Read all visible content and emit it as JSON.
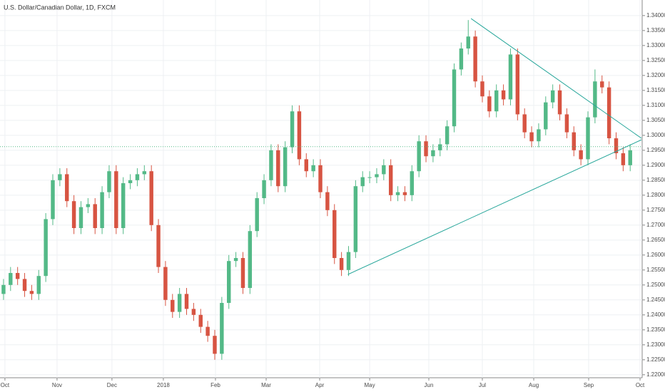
{
  "chart_data": {
    "type": "candlestick",
    "title": "U.S. Dollar/Canadian Dollar, 1D, FXCM",
    "up_color": "#53b987",
    "down_color": "#d75442",
    "grid": true,
    "categories": [
      null,
      null,
      null,
      null,
      null,
      null,
      null,
      null,
      null,
      null,
      null,
      null,
      null,
      null,
      null,
      null,
      null,
      null,
      null,
      null,
      null,
      null,
      null,
      null,
      null,
      null,
      null,
      null,
      null,
      null,
      null,
      null,
      null,
      null,
      null,
      null,
      null,
      null,
      null,
      null,
      null,
      null,
      null,
      null,
      null,
      null,
      null,
      null,
      null,
      null,
      null,
      null,
      null,
      null,
      null,
      null,
      null,
      null,
      null,
      null,
      null,
      null,
      null,
      null,
      null,
      null,
      null,
      null,
      null,
      null,
      null,
      null,
      null,
      null,
      null,
      null,
      null,
      null,
      null,
      null,
      null,
      null,
      null,
      null,
      null,
      null,
      null,
      null,
      null,
      null
    ],
    "open": [
      1.247,
      1.25,
      1.254,
      1.252,
      1.248,
      1.247,
      1.253,
      1.272,
      1.285,
      1.287,
      1.278,
      1.269,
      1.276,
      1.277,
      1.269,
      1.281,
      1.288,
      1.269,
      1.284,
      1.285,
      1.287,
      1.288,
      1.27,
      1.256,
      1.245,
      1.241,
      1.247,
      1.242,
      1.24,
      1.236,
      1.233,
      1.227,
      1.244,
      1.258,
      1.259,
      1.249,
      1.268,
      1.279,
      1.285,
      1.295,
      1.283,
      1.296,
      1.308,
      1.292,
      1.288,
      1.29,
      1.281,
      1.275,
      1.259,
      1.255,
      1.261,
      1.283,
      1.286,
      1.286,
      1.287,
      1.29,
      1.28,
      1.281,
      1.28,
      1.288,
      1.298,
      1.293,
      1.295,
      1.297,
      1.303,
      1.322,
      1.329,
      1.333,
      1.318,
      1.313,
      1.308,
      1.315,
      1.312,
      1.327,
      1.307,
      1.301,
      1.298,
      1.302,
      1.311,
      1.315,
      1.307,
      1.301,
      1.295,
      1.292,
      1.306,
      1.318,
      1.316,
      1.299,
      1.294,
      1.29
    ],
    "high": [
      1.252,
      1.256,
      1.256,
      1.254,
      1.25,
      1.255,
      1.274,
      1.287,
      1.289,
      1.289,
      1.28,
      1.278,
      1.279,
      1.279,
      1.283,
      1.29,
      1.29,
      1.286,
      1.287,
      1.289,
      1.29,
      1.29,
      1.272,
      1.258,
      1.247,
      1.249,
      1.249,
      1.244,
      1.242,
      1.238,
      1.235,
      1.246,
      1.26,
      1.261,
      1.261,
      1.27,
      1.281,
      1.287,
      1.297,
      1.297,
      1.298,
      1.31,
      1.31,
      1.294,
      1.292,
      1.292,
      1.283,
      1.277,
      1.261,
      1.263,
      1.285,
      1.288,
      1.288,
      1.289,
      1.292,
      1.292,
      1.283,
      1.283,
      1.29,
      1.3,
      1.3,
      1.297,
      1.299,
      1.305,
      1.324,
      1.331,
      1.3385,
      1.335,
      1.32,
      1.315,
      1.317,
      1.317,
      1.329,
      1.329,
      1.309,
      1.303,
      1.304,
      1.313,
      1.317,
      1.317,
      1.309,
      1.303,
      1.297,
      1.308,
      1.322,
      1.32,
      1.318,
      1.301,
      1.296,
      1.297
    ],
    "low": [
      1.245,
      1.248,
      1.25,
      1.246,
      1.245,
      1.245,
      1.251,
      1.27,
      1.283,
      1.276,
      1.267,
      1.267,
      1.274,
      1.267,
      1.267,
      1.279,
      1.267,
      1.267,
      1.282,
      1.283,
      1.285,
      1.268,
      1.254,
      1.243,
      1.239,
      1.239,
      1.24,
      1.238,
      1.234,
      1.231,
      1.225,
      1.225,
      1.242,
      1.256,
      1.247,
      1.247,
      1.266,
      1.277,
      1.283,
      1.281,
      1.281,
      1.294,
      1.29,
      1.286,
      1.286,
      1.279,
      1.273,
      1.257,
      1.253,
      1.253,
      1.259,
      1.281,
      1.284,
      1.284,
      1.285,
      1.278,
      1.278,
      1.278,
      1.278,
      1.286,
      1.291,
      1.291,
      1.293,
      1.295,
      1.301,
      1.32,
      1.327,
      1.316,
      1.311,
      1.306,
      1.306,
      1.31,
      1.31,
      1.305,
      1.299,
      1.296,
      1.296,
      1.3,
      1.309,
      1.305,
      1.299,
      1.293,
      1.29,
      1.29,
      1.304,
      1.314,
      1.297,
      1.292,
      1.288,
      1.288
    ],
    "close": [
      1.25,
      1.254,
      1.252,
      1.248,
      1.247,
      1.253,
      1.272,
      1.285,
      1.287,
      1.278,
      1.269,
      1.276,
      1.277,
      1.269,
      1.281,
      1.288,
      1.269,
      1.284,
      1.285,
      1.287,
      1.288,
      1.27,
      1.256,
      1.245,
      1.241,
      1.247,
      1.242,
      1.24,
      1.236,
      1.233,
      1.227,
      1.244,
      1.258,
      1.259,
      1.249,
      1.268,
      1.279,
      1.285,
      1.295,
      1.283,
      1.296,
      1.308,
      1.292,
      1.288,
      1.29,
      1.281,
      1.275,
      1.259,
      1.255,
      1.261,
      1.283,
      1.286,
      1.286,
      1.287,
      1.29,
      1.28,
      1.281,
      1.28,
      1.288,
      1.298,
      1.293,
      1.295,
      1.297,
      1.303,
      1.322,
      1.329,
      1.333,
      1.318,
      1.313,
      1.308,
      1.315,
      1.312,
      1.327,
      1.307,
      1.301,
      1.298,
      1.302,
      1.311,
      1.315,
      1.307,
      1.301,
      1.295,
      1.292,
      1.306,
      1.318,
      1.316,
      1.299,
      1.294,
      1.29,
      1.295
    ],
    "xlim": [
      -0.5,
      90.7
    ],
    "xticks": [
      {
        "value": 0.2,
        "label": "Oct"
      },
      {
        "value": 7.6,
        "label": "Nov"
      },
      {
        "value": 15.4,
        "label": "Dec"
      },
      {
        "value": 22.7,
        "label": "2018"
      },
      {
        "value": 30.1,
        "label": "Feb"
      },
      {
        "value": 37.3,
        "label": "Mar"
      },
      {
        "value": 44.9,
        "label": "Apr"
      },
      {
        "value": 52,
        "label": "May"
      },
      {
        "value": 60.4,
        "label": "Jun"
      },
      {
        "value": 68,
        "label": "Jul"
      },
      {
        "value": 75.3,
        "label": "Aug"
      },
      {
        "value": 83.1,
        "label": "Sep"
      },
      {
        "value": 90.4,
        "label": "Oct"
      }
    ],
    "ylim": [
      1.219,
      1.3452
    ],
    "yticks": [
      {
        "value": 1.22,
        "label": "1.22000"
      },
      {
        "value": 1.225,
        "label": "1.22500"
      },
      {
        "value": 1.23,
        "label": "1.23000"
      },
      {
        "value": 1.235,
        "label": "1.23500"
      },
      {
        "value": 1.24,
        "label": "1.24000"
      },
      {
        "value": 1.245,
        "label": "1.24500"
      },
      {
        "value": 1.25,
        "label": "1.25000"
      },
      {
        "value": 1.255,
        "label": "1.25500"
      },
      {
        "value": 1.26,
        "label": "1.26000"
      },
      {
        "value": 1.265,
        "label": "1.26500"
      },
      {
        "value": 1.27,
        "label": "1.27000"
      },
      {
        "value": 1.275,
        "label": "1.27500"
      },
      {
        "value": 1.28,
        "label": "1.28000"
      },
      {
        "value": 1.285,
        "label": "1.28500"
      },
      {
        "value": 1.29,
        "label": "1.29000"
      },
      {
        "value": 1.295,
        "label": "1.29500"
      },
      {
        "value": 1.3,
        "label": "1.30000"
      },
      {
        "value": 1.305,
        "label": "1.30500"
      },
      {
        "value": 1.31,
        "label": "1.31000"
      },
      {
        "value": 1.315,
        "label": "1.31500"
      },
      {
        "value": 1.32,
        "label": "1.32000"
      },
      {
        "value": 1.325,
        "label": "1.32500"
      },
      {
        "value": 1.33,
        "label": "1.33000"
      },
      {
        "value": 1.335,
        "label": "1.33500"
      },
      {
        "value": 1.34,
        "label": "1.34000"
      }
    ],
    "trendline_color": "#26a69a",
    "trendlines": [
      {
        "x": [
          66.4,
          90.6
        ],
        "y": [
          1.339,
          1.299
        ]
      },
      {
        "x": [
          48.9,
          90.6
        ],
        "y": [
          1.2535,
          1.2985
        ]
      }
    ],
    "price_line": 1.2962
  }
}
